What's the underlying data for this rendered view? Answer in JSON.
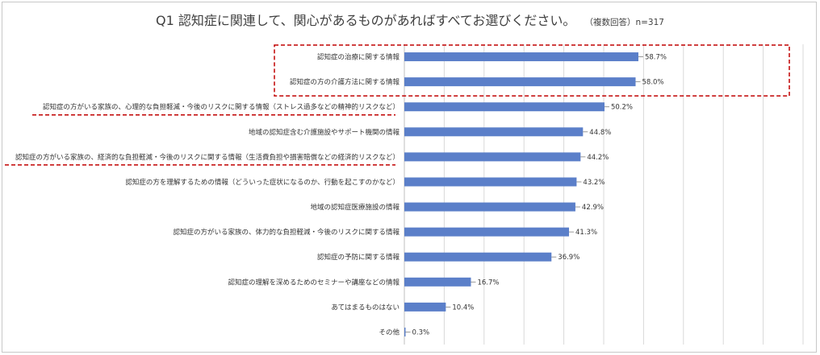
{
  "header": {
    "title": "Q1 認知症に関連して、関心があるものがあればすべてお選びください。",
    "subtitle": "（複数回答）n=317"
  },
  "colors": {
    "bar": "#5b7fc9",
    "grid": "#d9d9d9",
    "highlight": "#c00000"
  },
  "chart_data": {
    "type": "bar",
    "orientation": "horizontal",
    "xlim": [
      0,
      100
    ],
    "grid": true,
    "categories": [
      "認知症の治療に関する情報",
      "認知症の方の介護方法に関する情報",
      "認知症の方がいる家族の、心理的な負担軽減・今後のリスクに関する情報（ストレス過多などの精神的リスクなど）",
      "地域の認知症含む介護施設やサポート機関の情報",
      "認知症の方がいる家族の、経済的な負担軽減・今後のリスクに関する情報（生活費負担や損害賠償などの経済的リスクなど）",
      "認知症の方を理解するための情報（どういった症状になるのか、行動を起こすのかなど）",
      "地域の認知症医療施設の情報",
      "認知症の方がいる家族の、体力的な負担軽減・今後のリスクに関する情報",
      "認知症の予防に関する情報",
      "認知症の理解を深めるためのセミナーや講座などの情報",
      "あてはまるものはない",
      "その他"
    ],
    "values": [
      58.7,
      58.0,
      50.2,
      44.8,
      44.2,
      43.2,
      42.9,
      41.3,
      36.9,
      16.7,
      10.4,
      0.3
    ],
    "data_labels": [
      "58.7%",
      "58.0%",
      "50.2%",
      "44.8%",
      "44.2%",
      "43.2%",
      "42.9%",
      "41.3%",
      "36.9%",
      "16.7%",
      "10.4%",
      "0.3%"
    ]
  }
}
